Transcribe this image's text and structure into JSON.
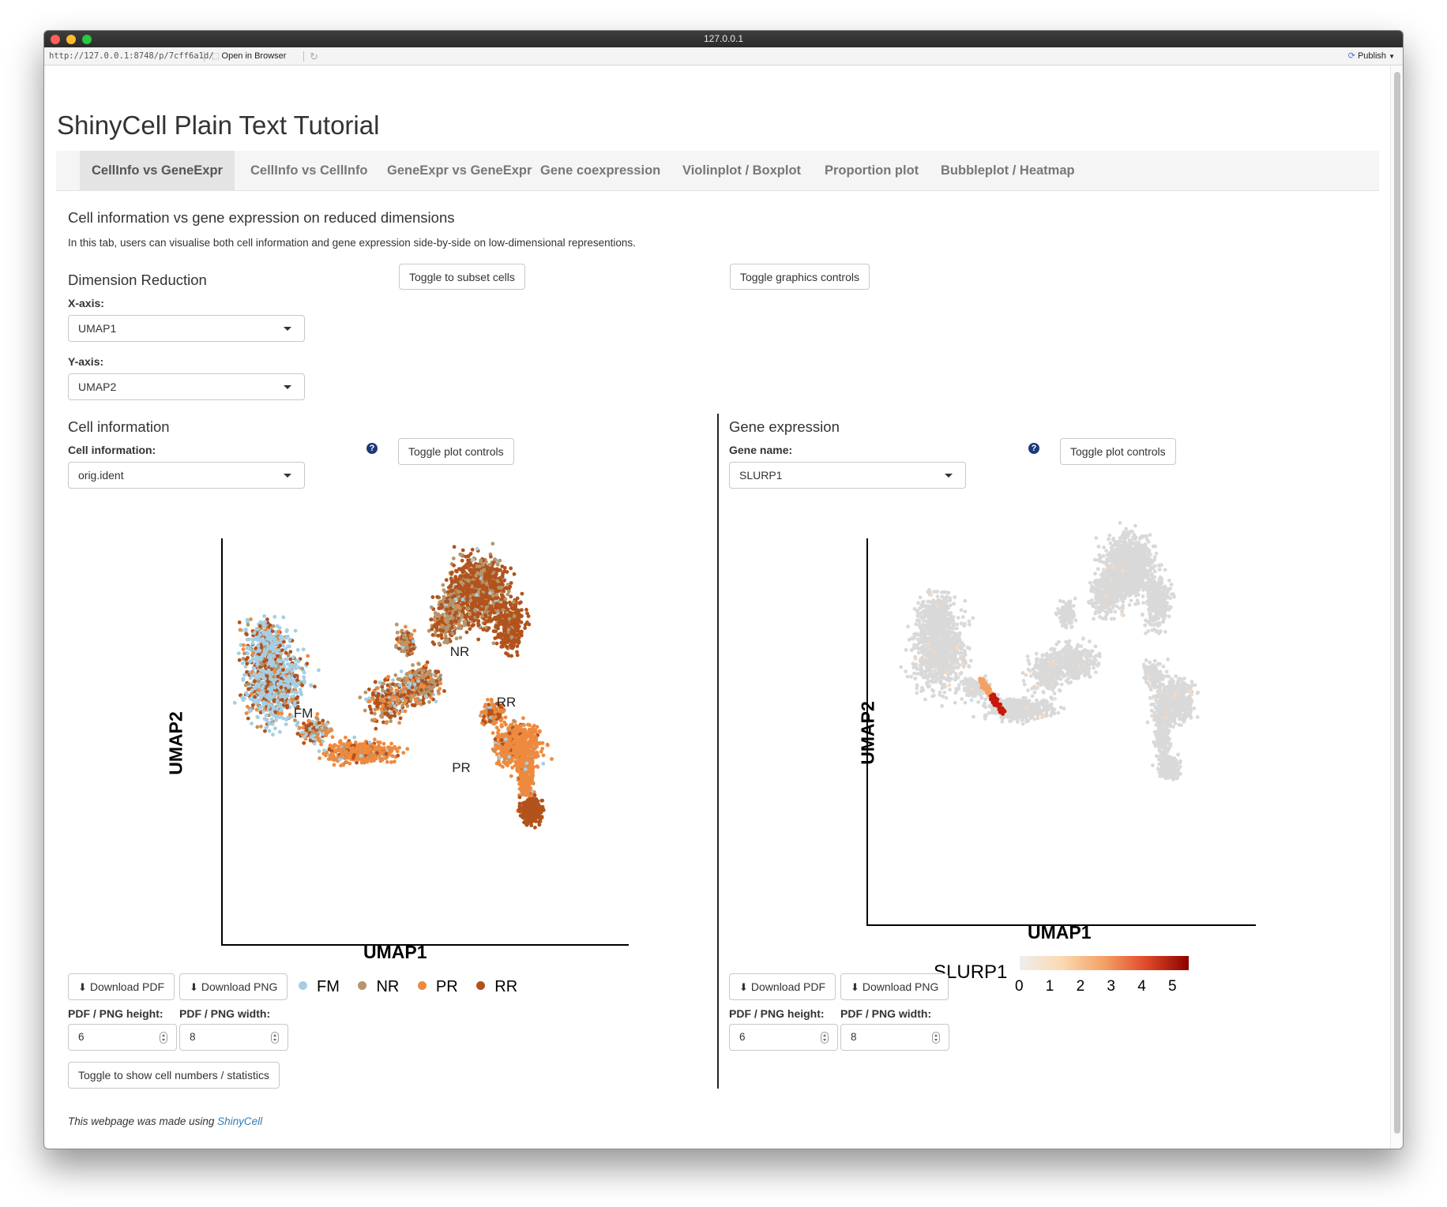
{
  "window": {
    "title": "127.0.0.1",
    "url": "http://127.0.0.1:8748/p/7cff6a1d/",
    "open_in_browser": "Open in Browser",
    "publish": "Publish"
  },
  "app": {
    "title": "ShinyCell Plain Text Tutorial",
    "tabs": [
      {
        "label": "CellInfo vs GeneExpr",
        "active": true
      },
      {
        "label": "CellInfo vs CellInfo"
      },
      {
        "label": "GeneExpr vs GeneExpr"
      },
      {
        "label": "Gene coexpression"
      },
      {
        "label": "Violinplot / Boxplot"
      },
      {
        "label": "Proportion plot"
      },
      {
        "label": "Bubbleplot / Heatmap"
      }
    ]
  },
  "section": {
    "heading": "Cell information vs gene expression on reduced dimensions",
    "description": "In this tab, users can visualise both cell information and gene expression side-by-side on low-dimensional representions."
  },
  "dimred": {
    "heading": "Dimension Reduction",
    "x_label": "X-axis:",
    "x_value": "UMAP1",
    "y_label": "Y-axis:",
    "y_value": "UMAP2",
    "toggle_subset": "Toggle to subset cells",
    "toggle_graphics": "Toggle graphics controls"
  },
  "cellinfo": {
    "heading": "Cell information",
    "label": "Cell information:",
    "value": "orig.ident",
    "toggle_plot": "Toggle plot controls",
    "help": "?",
    "download_pdf": "Download PDF",
    "download_png": "Download PNG",
    "height_label": "PDF / PNG height:",
    "width_label": "PDF / PNG width:",
    "height_value": "6",
    "width_value": "8",
    "toggle_stats": "Toggle to show cell numbers / statistics"
  },
  "geneexpr": {
    "heading": "Gene expression",
    "label": "Gene name:",
    "value": "SLURP1",
    "toggle_plot": "Toggle plot controls",
    "help": "?",
    "download_pdf": "Download PDF",
    "download_png": "Download PNG",
    "height_label": "PDF / PNG height:",
    "width_label": "PDF / PNG width:",
    "height_value": "6",
    "width_value": "8"
  },
  "footer": {
    "text": "This webpage was made using ",
    "link": "ShinyCell"
  },
  "chart_data": [
    {
      "type": "scatter",
      "title": "",
      "xlabel": "UMAP1",
      "ylabel": "UMAP2",
      "grid": false,
      "legend_position": "bottom",
      "legend": [
        {
          "label": "FM",
          "color": "#a6cee3"
        },
        {
          "label": "NR",
          "color": "#b5956b"
        },
        {
          "label": "PR",
          "color": "#ee8a3f"
        },
        {
          "label": "RR",
          "color": "#b2521c"
        }
      ],
      "cluster_labels": [
        "FM",
        "NR",
        "RR",
        "PR"
      ]
    },
    {
      "type": "scatter",
      "title": "",
      "xlabel": "UMAP1",
      "ylabel": "UMAP2",
      "grid": false,
      "colorbar": {
        "title": "SLURP1",
        "ticks": [
          "0",
          "1",
          "2",
          "3",
          "4",
          "5"
        ],
        "range": [
          0,
          5
        ],
        "colors": [
          "#eeeeee",
          "#fbd9b2",
          "#f4a064",
          "#e04a2a",
          "#8b0000"
        ],
        "position": "bottom"
      },
      "base_color": "#d9d9d9",
      "high_color": "#c8180d"
    }
  ]
}
